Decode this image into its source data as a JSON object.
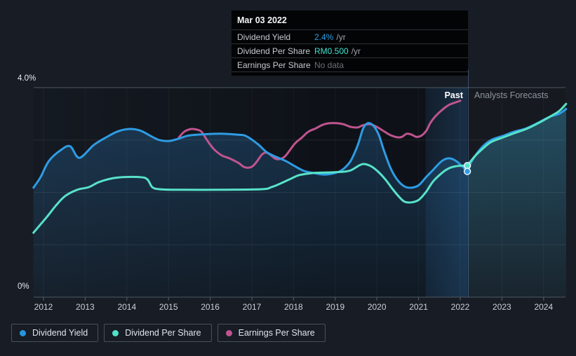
{
  "tooltip": {
    "title": "Mar 03 2022",
    "rows": [
      {
        "label": "Dividend Yield",
        "value": "2.4%",
        "unit": "/yr",
        "value_color": "#2e9fe6"
      },
      {
        "label": "Dividend Per Share",
        "value": "RM0.500",
        "unit": "/yr",
        "value_color": "#40e2cf"
      },
      {
        "label": "Earnings Per Share",
        "value": "No data",
        "unit": "",
        "value_color": "#6b7177"
      }
    ]
  },
  "annotations": {
    "past_label": "Past",
    "forecast_label": "Analysts Forecasts"
  },
  "legend": [
    {
      "label": "Dividend Yield",
      "color": "#2596df"
    },
    {
      "label": "Dividend Per Share",
      "color": "#4fe2c9"
    },
    {
      "label": "Earnings Per Share",
      "color": "#c0538e"
    }
  ],
  "chart_data": {
    "type": "line",
    "title": "Dividend history and forecast",
    "x_axis": {
      "ticks": [
        2012,
        2013,
        2014,
        2015,
        2016,
        2017,
        2018,
        2019,
        2020,
        2021,
        2022,
        2023,
        2024
      ]
    },
    "y_axis": {
      "min": 0,
      "max": 4,
      "top_label": "4.0%",
      "bottom_label": "0%",
      "gridlines": [
        1,
        2,
        3
      ]
    },
    "past_boundary_x": 2022.17,
    "highlight_band": {
      "from": 2021.17,
      "to": 2022.17
    },
    "marker": {
      "x": 2022.17,
      "points": [
        {
          "name": "Dividend Yield",
          "value": 2.4
        },
        {
          "name": "Dividend Per Share",
          "value": 2.51
        }
      ]
    },
    "series": [
      {
        "name": "Dividend Yield",
        "color": "#2e9ce4",
        "unit": "%",
        "points_past": [
          [
            2011.76,
            2.09
          ],
          [
            2011.93,
            2.29
          ],
          [
            2012.13,
            2.6
          ],
          [
            2012.42,
            2.81
          ],
          [
            2012.64,
            2.88
          ],
          [
            2012.86,
            2.66
          ],
          [
            2013.2,
            2.9
          ],
          [
            2013.48,
            3.04
          ],
          [
            2013.77,
            3.16
          ],
          [
            2014.04,
            3.21
          ],
          [
            2014.32,
            3.18
          ],
          [
            2014.61,
            3.06
          ],
          [
            2014.78,
            3.0
          ],
          [
            2015.0,
            2.98
          ],
          [
            2015.22,
            3.02
          ],
          [
            2015.45,
            3.08
          ],
          [
            2015.67,
            3.1
          ],
          [
            2016.23,
            3.12
          ],
          [
            2016.68,
            3.1
          ],
          [
            2016.85,
            3.08
          ],
          [
            2017.13,
            2.93
          ],
          [
            2017.35,
            2.77
          ],
          [
            2017.52,
            2.7
          ],
          [
            2017.81,
            2.6
          ],
          [
            2018.03,
            2.5
          ],
          [
            2018.25,
            2.41
          ],
          [
            2018.48,
            2.37
          ],
          [
            2018.75,
            2.34
          ],
          [
            2019.04,
            2.38
          ],
          [
            2019.2,
            2.45
          ],
          [
            2019.37,
            2.6
          ],
          [
            2019.54,
            2.9
          ],
          [
            2019.66,
            3.2
          ],
          [
            2019.74,
            3.3
          ],
          [
            2019.83,
            3.32
          ],
          [
            2019.93,
            3.26
          ],
          [
            2020.05,
            3.09
          ],
          [
            2020.16,
            2.82
          ],
          [
            2020.33,
            2.46
          ],
          [
            2020.5,
            2.23
          ],
          [
            2020.67,
            2.11
          ],
          [
            2020.84,
            2.09
          ],
          [
            2021.01,
            2.14
          ],
          [
            2021.18,
            2.29
          ],
          [
            2021.35,
            2.43
          ],
          [
            2021.56,
            2.6
          ],
          [
            2021.73,
            2.65
          ],
          [
            2021.9,
            2.6
          ],
          [
            2022.07,
            2.48
          ],
          [
            2022.17,
            2.4
          ]
        ],
        "points_forecast": [
          [
            2022.17,
            2.4
          ],
          [
            2022.28,
            2.6
          ],
          [
            2022.52,
            2.86
          ],
          [
            2022.74,
            3.0
          ],
          [
            2023.03,
            3.08
          ],
          [
            2023.3,
            3.16
          ],
          [
            2023.58,
            3.22
          ],
          [
            2023.87,
            3.33
          ],
          [
            2024.14,
            3.44
          ],
          [
            2024.37,
            3.5
          ],
          [
            2024.54,
            3.59
          ]
        ]
      },
      {
        "name": "Dividend Per Share",
        "color": "#58e2c9",
        "unit": "RM (plotted on chart scale)",
        "points_past": [
          [
            2011.76,
            1.23
          ],
          [
            2012.08,
            1.53
          ],
          [
            2012.3,
            1.75
          ],
          [
            2012.52,
            1.93
          ],
          [
            2012.81,
            2.05
          ],
          [
            2013.09,
            2.1
          ],
          [
            2013.31,
            2.19
          ],
          [
            2013.6,
            2.26
          ],
          [
            2013.9,
            2.29
          ],
          [
            2014.32,
            2.29
          ],
          [
            2014.49,
            2.25
          ],
          [
            2014.61,
            2.1
          ],
          [
            2014.78,
            2.06
          ],
          [
            2015.16,
            2.05
          ],
          [
            2016.29,
            2.05
          ],
          [
            2017.24,
            2.06
          ],
          [
            2017.47,
            2.1
          ],
          [
            2017.69,
            2.17
          ],
          [
            2017.91,
            2.25
          ],
          [
            2018.14,
            2.33
          ],
          [
            2018.48,
            2.37
          ],
          [
            2018.82,
            2.38
          ],
          [
            2019.15,
            2.39
          ],
          [
            2019.37,
            2.42
          ],
          [
            2019.59,
            2.52
          ],
          [
            2019.71,
            2.54
          ],
          [
            2019.88,
            2.49
          ],
          [
            2020.05,
            2.38
          ],
          [
            2020.22,
            2.23
          ],
          [
            2020.38,
            2.06
          ],
          [
            2020.55,
            1.9
          ],
          [
            2020.67,
            1.82
          ],
          [
            2020.84,
            1.81
          ],
          [
            2021.01,
            1.86
          ],
          [
            2021.18,
            2.01
          ],
          [
            2021.35,
            2.21
          ],
          [
            2021.56,
            2.37
          ],
          [
            2021.73,
            2.46
          ],
          [
            2021.9,
            2.5
          ],
          [
            2022.07,
            2.51
          ],
          [
            2022.17,
            2.51
          ]
        ],
        "points_forecast": [
          [
            2022.17,
            2.51
          ],
          [
            2022.35,
            2.69
          ],
          [
            2022.52,
            2.82
          ],
          [
            2022.74,
            2.96
          ],
          [
            2023.03,
            3.05
          ],
          [
            2023.3,
            3.13
          ],
          [
            2023.58,
            3.21
          ],
          [
            2023.87,
            3.32
          ],
          [
            2024.14,
            3.44
          ],
          [
            2024.37,
            3.55
          ],
          [
            2024.54,
            3.69
          ]
        ]
      },
      {
        "name": "Earnings Per Share",
        "color": "#c0548f",
        "unit": "(plotted on chart scale)",
        "points_past": [
          [
            2015.25,
            3.05
          ],
          [
            2015.38,
            3.16
          ],
          [
            2015.54,
            3.21
          ],
          [
            2015.67,
            3.2
          ],
          [
            2015.79,
            3.16
          ],
          [
            2015.89,
            3.04
          ],
          [
            2016.01,
            2.9
          ],
          [
            2016.12,
            2.8
          ],
          [
            2016.29,
            2.7
          ],
          [
            2016.46,
            2.65
          ],
          [
            2016.68,
            2.56
          ],
          [
            2016.8,
            2.49
          ],
          [
            2016.9,
            2.47
          ],
          [
            2017.02,
            2.5
          ],
          [
            2017.13,
            2.6
          ],
          [
            2017.24,
            2.72
          ],
          [
            2017.35,
            2.76
          ],
          [
            2017.47,
            2.7
          ],
          [
            2017.57,
            2.64
          ],
          [
            2017.69,
            2.64
          ],
          [
            2017.81,
            2.7
          ],
          [
            2018.03,
            2.93
          ],
          [
            2018.19,
            3.04
          ],
          [
            2018.36,
            3.16
          ],
          [
            2018.53,
            3.22
          ],
          [
            2018.7,
            3.29
          ],
          [
            2018.87,
            3.32
          ],
          [
            2019.04,
            3.32
          ],
          [
            2019.2,
            3.3
          ],
          [
            2019.37,
            3.25
          ],
          [
            2019.54,
            3.24
          ],
          [
            2019.66,
            3.28
          ],
          [
            2019.83,
            3.3
          ],
          [
            2020.0,
            3.25
          ],
          [
            2020.16,
            3.17
          ],
          [
            2020.33,
            3.09
          ],
          [
            2020.5,
            3.05
          ],
          [
            2020.6,
            3.06
          ],
          [
            2020.72,
            3.12
          ],
          [
            2020.84,
            3.1
          ],
          [
            2020.94,
            3.06
          ],
          [
            2021.06,
            3.08
          ],
          [
            2021.18,
            3.17
          ],
          [
            2021.28,
            3.32
          ],
          [
            2021.39,
            3.44
          ],
          [
            2021.56,
            3.57
          ],
          [
            2021.73,
            3.67
          ],
          [
            2021.9,
            3.72
          ],
          [
            2022.0,
            3.75
          ]
        ],
        "points_forecast": []
      }
    ]
  }
}
